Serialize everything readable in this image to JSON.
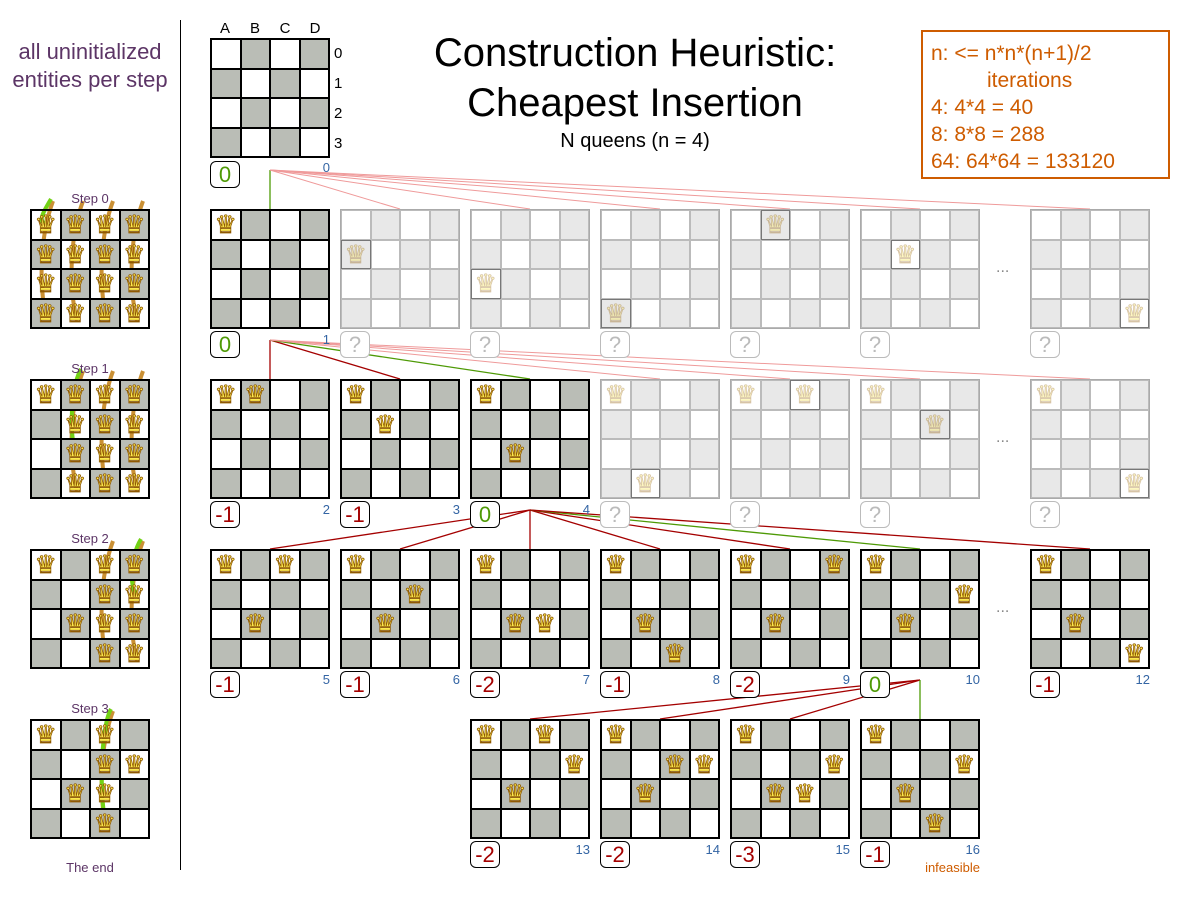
{
  "left_panel": {
    "heading": "all uninitialized entities per step",
    "steps": [
      {
        "label": "Step 0",
        "queens": [
          "A0",
          "A1",
          "A2",
          "A3",
          "B0",
          "B1",
          "B2",
          "B3",
          "C0",
          "C1",
          "C2",
          "C3",
          "D0",
          "D1",
          "D2",
          "D3"
        ],
        "uninitialized": [
          "A",
          "B",
          "C",
          "D"
        ],
        "chosen": "A0"
      },
      {
        "label": "Step 1",
        "queens": [
          "A0",
          "B0",
          "B1",
          "B2",
          "B3",
          "C0",
          "C1",
          "C2",
          "C3",
          "D0",
          "D1",
          "D2",
          "D3"
        ],
        "uninitialized": [
          "B",
          "C",
          "D"
        ],
        "chosen": "B2"
      },
      {
        "label": "Step 2",
        "queens": [
          "A0",
          "B2",
          "C0",
          "C1",
          "C2",
          "C3",
          "D0",
          "D1",
          "D2",
          "D3"
        ],
        "uninitialized": [
          "C",
          "D"
        ],
        "chosen": "D1"
      },
      {
        "label": "Step 3",
        "queens": [
          "A0",
          "B2",
          "D1",
          "C0",
          "C1",
          "C2",
          "C3"
        ],
        "uninitialized": [
          "C"
        ],
        "chosen": "C3"
      }
    ],
    "footer": "The end"
  },
  "title": {
    "line1": "Construction Heuristic:",
    "line2": "Cheapest Insertion",
    "subtitle": "N queens (n = 4)"
  },
  "complexity_box": {
    "lines": [
      "n: <= n*n*(n+1)/2",
      "iterations",
      "4: 4*4 = 40",
      "8: 8*8 = 288",
      "64: 64*64 = 133120"
    ]
  },
  "top_board": {
    "columns": [
      "A",
      "B",
      "C",
      "D"
    ],
    "rows": [
      "0",
      "1",
      "2",
      "3"
    ],
    "score": "0",
    "number": "0",
    "queens": []
  },
  "tree": {
    "boards": [
      {
        "id": "1",
        "number": "1",
        "score": "0",
        "queens": [
          "A0"
        ],
        "parent": "0",
        "edge": "selected"
      },
      {
        "id": "g0a",
        "number": "",
        "score": "?",
        "queens": [
          "A1"
        ],
        "new_queen": "A1",
        "ghost": true,
        "parent": "0",
        "edge": "ghost"
      },
      {
        "id": "g0b",
        "number": "",
        "score": "?",
        "queens": [
          "A2"
        ],
        "new_queen": "A2",
        "ghost": true,
        "parent": "0",
        "edge": "ghost"
      },
      {
        "id": "g0c",
        "number": "",
        "score": "?",
        "queens": [
          "A3"
        ],
        "new_queen": "A3",
        "ghost": true,
        "parent": "0",
        "edge": "ghost"
      },
      {
        "id": "g0d",
        "number": "",
        "score": "?",
        "queens": [
          "B0"
        ],
        "new_queen": "B0",
        "ghost": true,
        "parent": "0",
        "edge": "ghost"
      },
      {
        "id": "g0e",
        "number": "",
        "score": "?",
        "queens": [
          "B1"
        ],
        "new_queen": "B1",
        "ghost": true,
        "parent": "0",
        "edge": "ghost"
      },
      {
        "id": "g0f",
        "number": "",
        "score": "?",
        "queens": [
          "D3"
        ],
        "new_queen": "D3",
        "ghost": true,
        "parent": "0",
        "edge": "ghost"
      },
      {
        "id": "2",
        "number": "2",
        "score": "-1",
        "queens": [
          "A0",
          "B0"
        ],
        "parent": "1",
        "edge": "rejected"
      },
      {
        "id": "3",
        "number": "3",
        "score": "-1",
        "queens": [
          "A0",
          "B1"
        ],
        "parent": "1",
        "edge": "rejected"
      },
      {
        "id": "4",
        "number": "4",
        "score": "0",
        "queens": [
          "A0",
          "B2"
        ],
        "parent": "1",
        "edge": "selected"
      },
      {
        "id": "g1a",
        "number": "",
        "score": "?",
        "queens": [
          "A0",
          "B3"
        ],
        "new_queen": "B3",
        "ghost": true,
        "parent": "1",
        "edge": "ghost"
      },
      {
        "id": "g1b",
        "number": "",
        "score": "?",
        "queens": [
          "A0",
          "C0"
        ],
        "new_queen": "C0",
        "ghost": true,
        "parent": "1",
        "edge": "ghost"
      },
      {
        "id": "g1c",
        "number": "",
        "score": "?",
        "queens": [
          "A0",
          "C1"
        ],
        "new_queen": "C1",
        "ghost": true,
        "parent": "1",
        "edge": "ghost"
      },
      {
        "id": "g1d",
        "number": "",
        "score": "?",
        "queens": [
          "A0",
          "D3"
        ],
        "new_queen": "D3",
        "ghost": true,
        "parent": "1",
        "edge": "ghost"
      },
      {
        "id": "5",
        "number": "5",
        "score": "-1",
        "queens": [
          "A0",
          "C0",
          "B2"
        ],
        "parent": "4",
        "edge": "rejected"
      },
      {
        "id": "6",
        "number": "6",
        "score": "-1",
        "queens": [
          "A0",
          "C1",
          "B2"
        ],
        "parent": "4",
        "edge": "rejected"
      },
      {
        "id": "7",
        "number": "7",
        "score": "-2",
        "queens": [
          "A0",
          "B2",
          "C2"
        ],
        "parent": "4",
        "edge": "rejected"
      },
      {
        "id": "8",
        "number": "8",
        "score": "-1",
        "queens": [
          "A0",
          "B2",
          "C3"
        ],
        "parent": "4",
        "edge": "rejected"
      },
      {
        "id": "9",
        "number": "9",
        "score": "-2",
        "queens": [
          "A0",
          "D0",
          "B2"
        ],
        "parent": "4",
        "edge": "rejected"
      },
      {
        "id": "10",
        "number": "10",
        "score": "0",
        "queens": [
          "A0",
          "D1",
          "B2"
        ],
        "parent": "4",
        "edge": "selected"
      },
      {
        "id": "12",
        "number": "12",
        "score": "-1",
        "queens": [
          "A0",
          "B2",
          "D3"
        ],
        "parent": "4",
        "edge": "rejected"
      },
      {
        "id": "13",
        "number": "13",
        "score": "-2",
        "queens": [
          "A0",
          "C0",
          "D1",
          "B2"
        ],
        "parent": "10",
        "edge": "rejected"
      },
      {
        "id": "14",
        "number": "14",
        "score": "-2",
        "queens": [
          "A0",
          "C1",
          "D1",
          "B2"
        ],
        "parent": "10",
        "edge": "rejected"
      },
      {
        "id": "15",
        "number": "15",
        "score": "-3",
        "queens": [
          "A0",
          "D1",
          "B2",
          "C2"
        ],
        "parent": "10",
        "edge": "rejected"
      },
      {
        "id": "16",
        "number": "16",
        "score": "-1",
        "queens": [
          "A0",
          "D1",
          "B2",
          "C3"
        ],
        "parent": "10",
        "edge": "selected",
        "note": "infeasible"
      }
    ],
    "ellipsis": "..."
  },
  "colors": {
    "selected": "#4e9a06",
    "rejected": "#a40000",
    "ghost_edge": "#ef9a9a",
    "number": "#3465a4",
    "accent": "#ce5c00",
    "label": "#5c3566",
    "dark_cell": "#babdb6"
  },
  "icons": {
    "queen": "queen-icon",
    "arrow": "move-arrow-icon"
  }
}
